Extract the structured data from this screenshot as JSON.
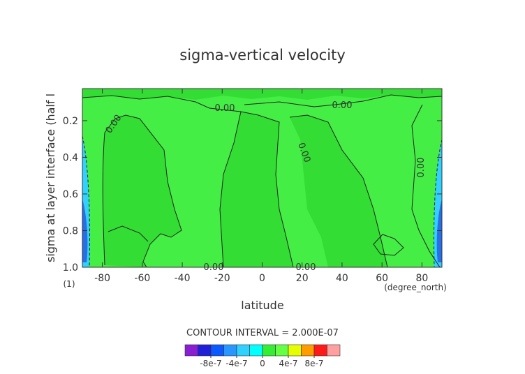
{
  "chart_data": {
    "type": "contour",
    "title": "sigma-vertical velocity",
    "xlabel": "latitude",
    "xunits": "(degree_north)",
    "ylabel": "sigma at layer interface (half l",
    "yunits": "(1)",
    "xlim": [
      -90,
      90
    ],
    "xticks": [
      -80,
      -60,
      -40,
      -20,
      0,
      20,
      40,
      60,
      80
    ],
    "ylim": [
      1.0,
      0.025
    ],
    "yticks": [
      0.2,
      0.4,
      0.6,
      0.8,
      {
        "value": 1,
        "label": "1.0"
      }
    ],
    "contour_labels": [
      "0.00",
      "0.00",
      "0.00",
      "0.00",
      "0.00",
      "0.00",
      "0.00"
    ],
    "contour_interval": "CONTOUR INTERVAL = 2.000E-07",
    "colorbar": {
      "levels": [
        -1.2e-06,
        -1e-06,
        -8e-07,
        -6e-07,
        -4e-07,
        -2e-07,
        0,
        2e-07,
        4e-07,
        6e-07,
        8e-07,
        1e-06,
        1.2e-06
      ],
      "colors": [
        "#8a1ed2",
        "#2020d8",
        "#0a5aff",
        "#2a96ff",
        "#30d0ff",
        "#00ffff",
        "#33ee33",
        "#66ff44",
        "#e6ff00",
        "#ff9c00",
        "#ff1a1a",
        "#ffa0a0"
      ],
      "ticks": [
        -8e-07,
        -4e-07,
        0,
        4e-07,
        8e-07
      ]
    }
  }
}
